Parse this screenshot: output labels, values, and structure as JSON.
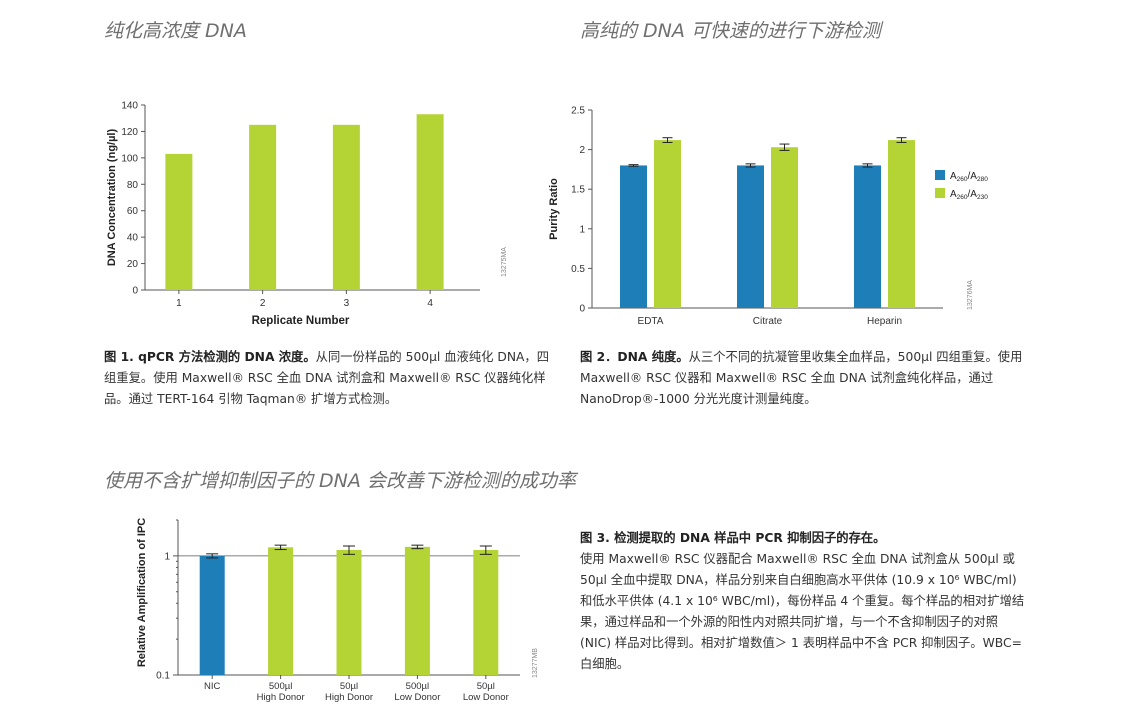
{
  "headings": {
    "h1": "纯化高浓度 DNA",
    "h2": "高纯的 DNA 可快速的进行下游检测",
    "h3": "使用不含扩增抑制因子的 DNA 会改善下游检测的成功率"
  },
  "captions": {
    "fig1": {
      "title": "图 1. qPCR 方法检测的 DNA 浓度。",
      "body": "从同一份样品的 500µl 血液纯化 DNA，四组重复。使用 Maxwell® RSC 全血 DNA 试剂盒和 Maxwell® RSC 仪器纯化样品。通过 TERT-164 引物 Taqman® 扩增方式检测。"
    },
    "fig2": {
      "title": "图 2．DNA 纯度。",
      "body": "从三个不同的抗凝管里收集全血样品，500µl 四组重复。使用 Maxwell® RSC 仪器和 Maxwell® RSC 全血 DNA 试剂盒纯化样品，通过 NanoDrop®-1000 分光光度计测量纯度。"
    },
    "fig3": {
      "title": "图 3. 检测提取的 DNA 样品中 PCR 抑制因子的存在。",
      "body": "使用 Maxwell® RSC 仪器配合 Maxwell® RSC 全血 DNA 试剂盒从 500µl 或 50µl 全血中提取 DNA，样品分别来自白细胞高水平供体 (10.9 x 10⁶ WBC/ml) 和低水平供体 (4.1 x 10⁶ WBC/ml)，每份样品 4 个重复。每个样品的相对扩增结果，通过样品和一个外源的阳性内对照共同扩增，与一个不含抑制因子的对照 (NIC) 样品对比得到。相对扩增数值＞ 1 表明样品中不含 PCR 抑制因子。WBC= 白细胞。"
    }
  },
  "colors": {
    "green": "#b4d334",
    "blue": "#1e7fb8",
    "axis": "#555555"
  },
  "chart_data": [
    {
      "type": "bar",
      "categories": [
        "1",
        "2",
        "3",
        "4"
      ],
      "values": [
        103,
        125,
        125,
        133
      ],
      "title": "",
      "xlabel": "Replicate Number",
      "ylabel": "DNA Concentration (ng/µl)",
      "ylim": [
        0,
        140
      ],
      "yticks": [
        "0",
        "20",
        "40",
        "60",
        "80",
        "100",
        "120",
        "140"
      ],
      "code": "13275MA"
    },
    {
      "type": "bar",
      "categories": [
        "EDTA",
        "Citrate",
        "Heparin"
      ],
      "series": [
        {
          "name": "A260/A280",
          "label_main": "A",
          "label_sub1": "260",
          "label_mid": "/A",
          "label_sub2": "280",
          "values": [
            1.8,
            1.8,
            1.8
          ],
          "errors": [
            0.01,
            0.02,
            0.02
          ]
        },
        {
          "name": "A260/A230",
          "label_main": "A",
          "label_sub1": "260",
          "label_mid": "/A",
          "label_sub2": "230",
          "values": [
            2.12,
            2.03,
            2.12
          ],
          "errors": [
            0.03,
            0.04,
            0.03
          ]
        }
      ],
      "xlabel": "",
      "ylabel": "Purity Ratio",
      "ylim": [
        0,
        2.5
      ],
      "yticks": [
        "0",
        "0.5",
        "1",
        "1.5",
        "2",
        "2.5"
      ],
      "legend": "right",
      "code": "13276MA"
    },
    {
      "type": "bar",
      "categories": [
        [
          "NIC"
        ],
        [
          "500µl",
          "High Donor"
        ],
        [
          "50µl",
          "High Donor"
        ],
        [
          "500µl",
          "Low Donor"
        ],
        [
          "50µl",
          "Low Donor"
        ]
      ],
      "values": [
        1.0,
        1.18,
        1.12,
        1.19,
        1.12
      ],
      "errors": [
        0.04,
        0.05,
        0.09,
        0.04,
        0.09
      ],
      "xlabel": "",
      "ylabel": "Relative Amplification of IPC",
      "yscale": "log",
      "ylim": [
        0.1,
        2
      ],
      "yticks": [
        "0.1",
        "1"
      ],
      "code": "13277MB"
    }
  ]
}
